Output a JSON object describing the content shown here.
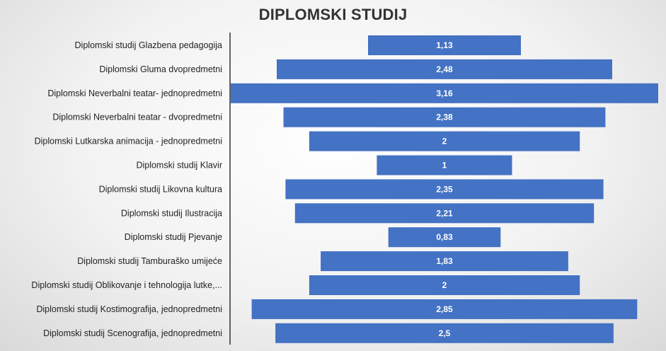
{
  "chart_data": {
    "type": "bar",
    "orientation": "horizontal",
    "layout": "centered-funnel",
    "title": "DIPLOMSKI STUDIJ",
    "categories": [
      "Diplomski studij Glazbena pedagogija",
      "Diplomski Gluma dvopredmetni",
      "Diplomski Neverbalni teatar- jednopredmetni",
      "Diplomski Neverbalni teatar - dvopredmetni",
      "Diplomski Lutkarska animacija - jednopredmetni",
      "Diplomski studij Klavir",
      "Diplomski studij Likovna kultura",
      "Diplomski studij Ilustracija",
      "Diplomski studij Pjevanje",
      "Diplomski studij Tamburaško umijeće",
      "Diplomski studij Oblikovanje i tehnologija lutke,...",
      "Diplomski studij Kostimografija, jednopredmetni",
      "Diplomski studij Scenografija, jednopredmetni"
    ],
    "values": [
      1.13,
      2.48,
      3.16,
      2.38,
      2,
      1,
      2.35,
      2.21,
      0.83,
      1.83,
      2,
      2.85,
      2.5
    ],
    "value_labels": [
      "1,13",
      "2,48",
      "3,16",
      "2,38",
      "2",
      "1",
      "2,35",
      "2,21",
      "0,83",
      "1,83",
      "2",
      "2,85",
      "2,5"
    ],
    "bar_color": "#4472C4",
    "grid": false,
    "legend": "none"
  }
}
